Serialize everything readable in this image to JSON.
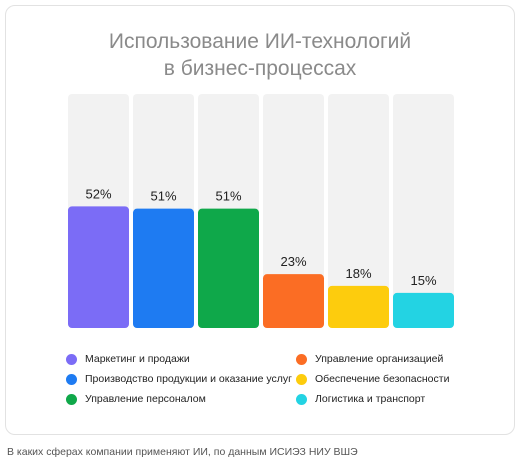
{
  "chart_data": {
    "type": "bar",
    "title_lines": [
      "Использование ИИ-технологий",
      "в бизнес-процессах"
    ],
    "categories": [
      "Маркетинг и продажи",
      "Производство продукции и оказание услуг",
      "Управление персоналом",
      "Управление организацией",
      "Обеспечение безопасности",
      "Логистика и транспорт"
    ],
    "values": [
      52,
      51,
      51,
      23,
      18,
      15
    ],
    "value_labels": [
      "52%",
      "51%",
      "51%",
      "23%",
      "18%",
      "15%"
    ],
    "colors": [
      "#7b6cf6",
      "#1e7bf2",
      "#0fa84a",
      "#fb6d24",
      "#fdcc0d",
      "#23d3e3"
    ],
    "track_color": "#f2f2f2",
    "ylim": [
      0,
      100
    ],
    "grid": false,
    "legend_placement": "bottom"
  },
  "caption": "В каких сферах компании применяют ИИ, по данным ИСИЭЗ НИУ ВШЭ"
}
